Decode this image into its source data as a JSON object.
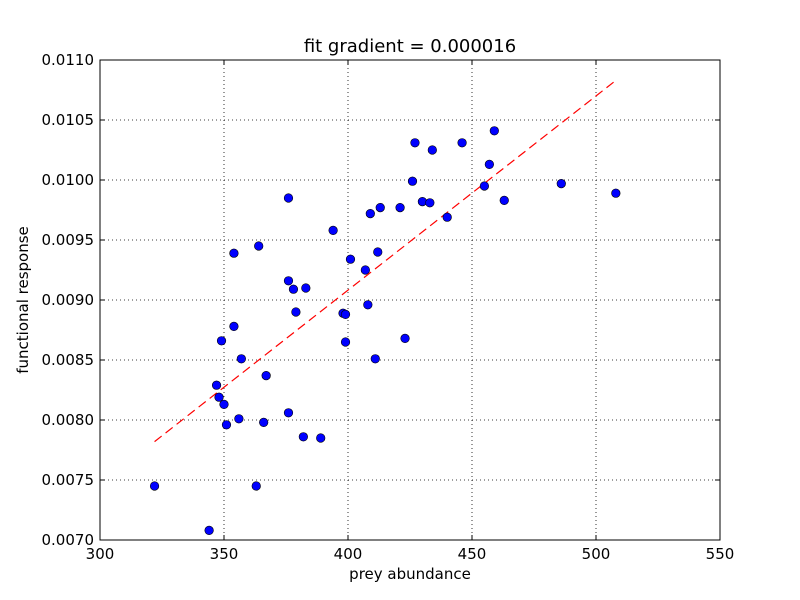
{
  "chart_data": {
    "type": "scatter",
    "title": "fit gradient = 0.000016",
    "xlabel": "prey abundance",
    "ylabel": "functional response",
    "xlim": [
      300,
      550
    ],
    "ylim": [
      0.007,
      0.011
    ],
    "grid": true,
    "xticks": [
      300,
      350,
      400,
      450,
      500,
      550
    ],
    "xtick_labels": [
      "300",
      "350",
      "400",
      "450",
      "500",
      "550"
    ],
    "yticks": [
      0.007,
      0.0075,
      0.008,
      0.0085,
      0.009,
      0.0095,
      0.01,
      0.0105,
      0.011
    ],
    "ytick_labels": [
      "0.0070",
      "0.0075",
      "0.0080",
      "0.0085",
      "0.0090",
      "0.0095",
      "0.0100",
      "0.0105",
      "0.0110"
    ],
    "marker_color": "#0000ff",
    "fit_color": "#ff0000",
    "points": [
      [
        322,
        0.00745
      ],
      [
        344,
        0.00708
      ],
      [
        347,
        0.00829
      ],
      [
        348,
        0.00819
      ],
      [
        349,
        0.00866
      ],
      [
        350,
        0.00813
      ],
      [
        351,
        0.00796
      ],
      [
        354,
        0.00878
      ],
      [
        354,
        0.00939
      ],
      [
        356,
        0.00801
      ],
      [
        357,
        0.00851
      ],
      [
        363,
        0.00745
      ],
      [
        364,
        0.00945
      ],
      [
        366,
        0.00798
      ],
      [
        367,
        0.00837
      ],
      [
        376,
        0.00985
      ],
      [
        376,
        0.00916
      ],
      [
        376,
        0.00806
      ],
      [
        378,
        0.00909
      ],
      [
        379,
        0.0089
      ],
      [
        382,
        0.00786
      ],
      [
        383,
        0.0091
      ],
      [
        389,
        0.00785
      ],
      [
        394,
        0.00958
      ],
      [
        398,
        0.00889
      ],
      [
        399,
        0.00888
      ],
      [
        399,
        0.00865
      ],
      [
        401,
        0.00934
      ],
      [
        407,
        0.00925
      ],
      [
        408,
        0.00896
      ],
      [
        409,
        0.00972
      ],
      [
        411,
        0.00851
      ],
      [
        412,
        0.0094
      ],
      [
        413,
        0.00977
      ],
      [
        421,
        0.00977
      ],
      [
        423,
        0.00868
      ],
      [
        426,
        0.00999
      ],
      [
        427,
        0.01031
      ],
      [
        430,
        0.00982
      ],
      [
        433,
        0.00981
      ],
      [
        434,
        0.01025
      ],
      [
        440,
        0.00969
      ],
      [
        446,
        0.01031
      ],
      [
        455,
        0.00995
      ],
      [
        457,
        0.01013
      ],
      [
        459,
        0.01041
      ],
      [
        463,
        0.00983
      ],
      [
        486,
        0.00997
      ],
      [
        508,
        0.00989
      ]
    ],
    "fit_line": {
      "x": [
        322,
        508
      ],
      "y": [
        0.00782,
        0.01083
      ]
    }
  }
}
